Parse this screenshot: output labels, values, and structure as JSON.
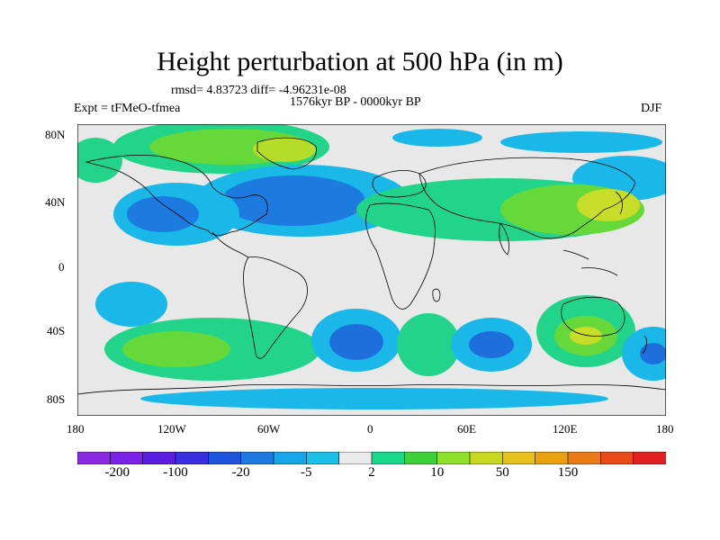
{
  "title": "Height perturbation at 500 hPa (in m)",
  "stats": "rmsd= 4.83723 diff= -4.96231e-08",
  "period": "1576kyr BP - 0000kyr BP",
  "experiment": "Expt = tFMeO-tfmea",
  "season": "DJF",
  "map_axes": {
    "lon_ticks": [
      "180",
      "120W",
      "60W",
      "0",
      "60E",
      "120E",
      "180"
    ],
    "lat_ticks": [
      "80N",
      "40N",
      "0",
      "40S",
      "80S"
    ]
  },
  "colorbar": {
    "colors": [
      "#8a2be2",
      "#7a22e6",
      "#5a1fe0",
      "#3a30e0",
      "#1f55dd",
      "#2079e0",
      "#16a6e8",
      "#1dc0e8",
      "#eaeaea",
      "#18d98b",
      "#3fd13a",
      "#8ee02a",
      "#c8d81e",
      "#e6c11a",
      "#e8a010",
      "#e87a18",
      "#e84a18",
      "#e02020"
    ],
    "labels": [
      "-200",
      "-100",
      "-20",
      "-5",
      "2",
      "10",
      "50",
      "150"
    ]
  },
  "legend_colors": {
    "neg_strong": "#1e6fdc",
    "neg_weak": "#1ab8e8",
    "pos_weak": "#22d48a",
    "pos_mid": "#66d83a",
    "pos_strong": "#c8dc2a",
    "ocean_bg": "#e8e8e8"
  }
}
